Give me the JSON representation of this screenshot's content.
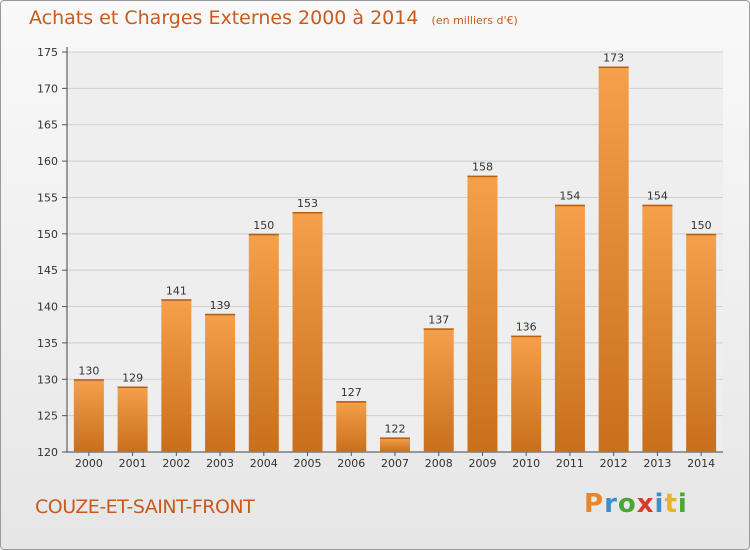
{
  "chart_data": {
    "type": "bar",
    "title": "Achats et Charges Externes 2000 à 2014",
    "subtitle": "(en milliers d'€)",
    "categories": [
      "2000",
      "2001",
      "2002",
      "2003",
      "2004",
      "2005",
      "2006",
      "2007",
      "2008",
      "2009",
      "2010",
      "2011",
      "2012",
      "2013",
      "2014"
    ],
    "values": [
      130,
      129,
      141,
      139,
      150,
      153,
      127,
      122,
      137,
      158,
      136,
      154,
      173,
      154,
      150
    ],
    "ylim": [
      120,
      175
    ],
    "yticks": [
      120,
      125,
      130,
      135,
      140,
      145,
      150,
      155,
      160,
      165,
      170,
      175
    ],
    "grid": true,
    "bar_color": "#e8862f"
  },
  "footer": {
    "city": "COUZE-ET-SAINT-FRONT",
    "logo_text": "Proxiti",
    "logo_colors": [
      "#e8862f",
      "#3a8fd0",
      "#4aa832",
      "#d93a2b",
      "#3a8fd0",
      "#e8b22f",
      "#4aa832"
    ]
  }
}
